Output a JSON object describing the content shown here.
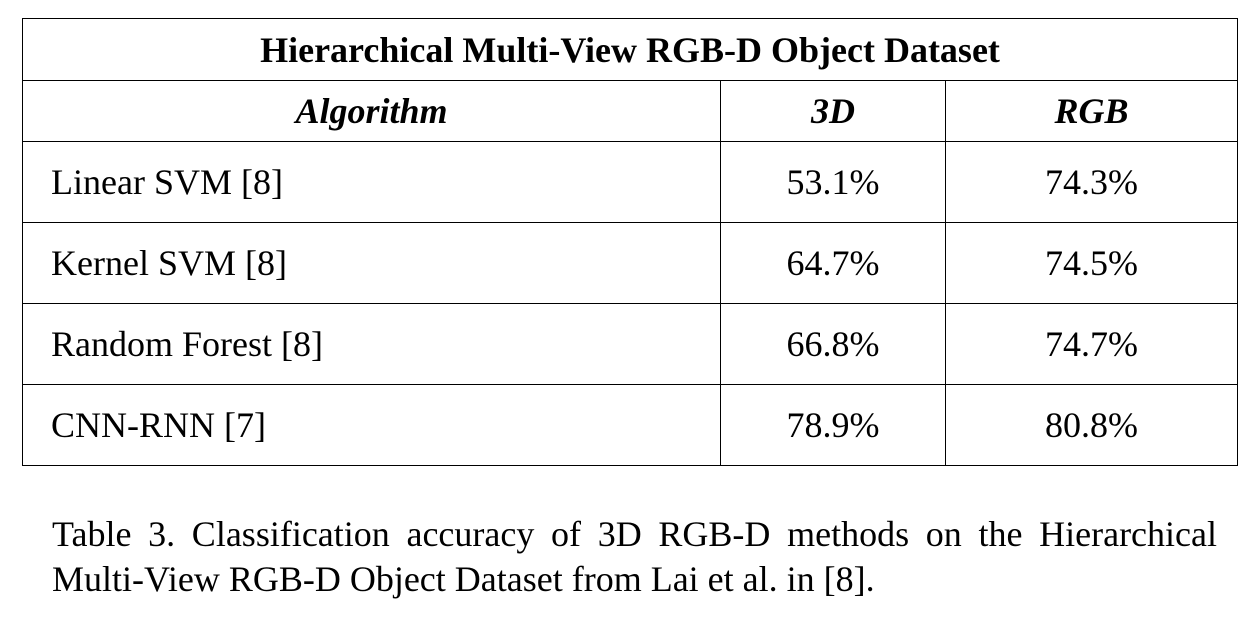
{
  "table": {
    "title": "Hierarchical Multi-View RGB-D Object Dataset",
    "columns": [
      "Algorithm",
      "3D",
      "RGB"
    ],
    "rows": [
      {
        "algorithm": "Linear SVM [8]",
        "3d": "53.1%",
        "rgb": "74.3%"
      },
      {
        "algorithm": "Kernel SVM [8]",
        "3d": "64.7%",
        "rgb": "74.5%"
      },
      {
        "algorithm": "Random Forest [8]",
        "3d": "66.8%",
        "rgb": "74.7%"
      },
      {
        "algorithm": "CNN-RNN [7]",
        "3d": "78.9%",
        "rgb": "80.8%"
      }
    ]
  },
  "caption": "Table 3. Classification accuracy of 3D RGB-D methods on the Hierarchical Multi-View RGB-D Object Dataset from Lai et al. in [8]."
}
